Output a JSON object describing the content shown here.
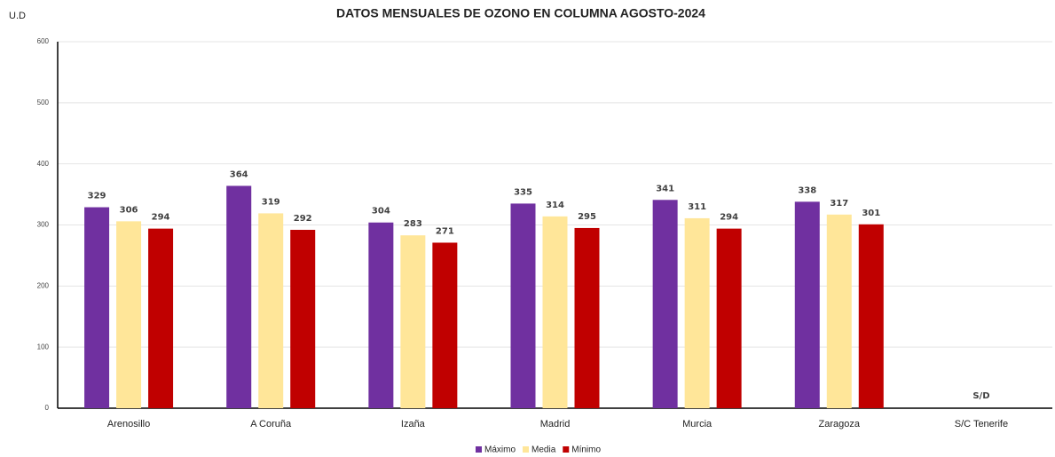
{
  "chart_data": {
    "type": "bar",
    "title": "DATOS MENSUALES DE OZONO EN COLUMNA AGOSTO-2024",
    "y_label": "U.D",
    "categories": [
      "Arenosillo",
      "A Coruña",
      "Izaña",
      "Madrid",
      "Murcia",
      "Zaragoza",
      "S/C Tenerife"
    ],
    "series": [
      {
        "name": "Máximo",
        "color": "#7030a0",
        "values": [
          329,
          364,
          304,
          335,
          341,
          338,
          null
        ]
      },
      {
        "name": "Media",
        "color": "#ffe699",
        "values": [
          306,
          319,
          283,
          314,
          311,
          317,
          null
        ]
      },
      {
        "name": "Mínimo",
        "color": "#c00000",
        "values": [
          294,
          292,
          271,
          295,
          294,
          301,
          null
        ]
      }
    ],
    "no_data_label": "S/D",
    "ylim": [
      0,
      600
    ],
    "yticks": [
      0,
      100,
      200,
      300,
      400,
      500,
      600
    ],
    "grid": true,
    "legend": "bottom"
  }
}
